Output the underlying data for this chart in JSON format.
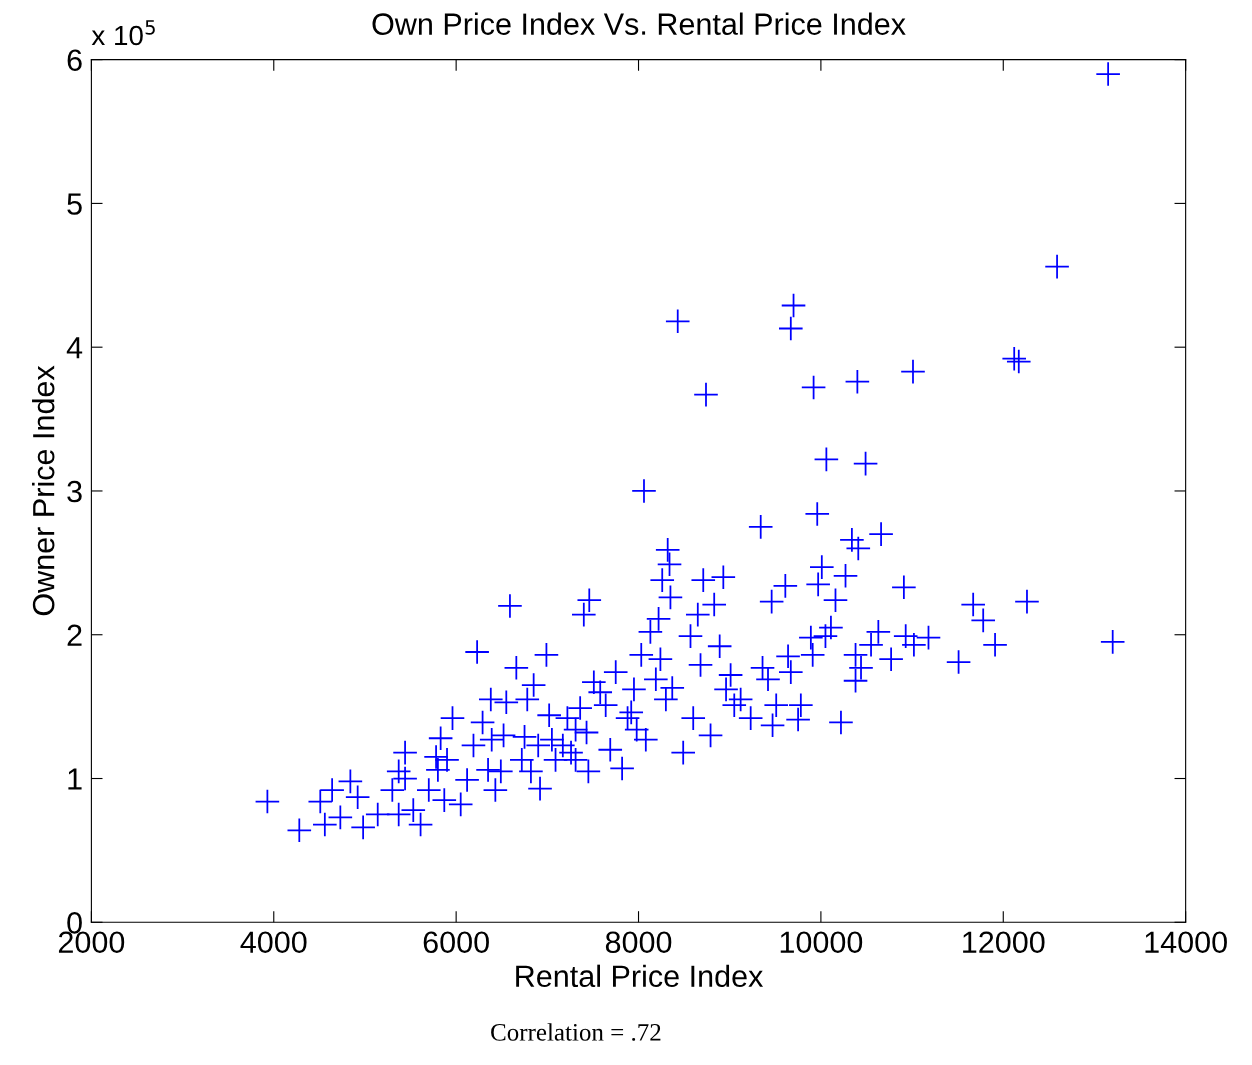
{
  "chart_data": {
    "type": "scatter",
    "title": "Own Price Index Vs. Rental Price Index",
    "xlabel": "Rental Price Index",
    "ylabel": "Owner Price Index",
    "annotations": [
      "x 10$^{5}$",
      "Correlation = .72"
    ],
    "xlim": [
      2000,
      14000
    ],
    "xticks": [
      2000,
      4000,
      6000,
      8000,
      10000,
      12000,
      14000
    ],
    "ylim": [
      0,
      6
    ],
    "yticks": [
      0,
      1,
      2,
      3,
      4,
      5,
      6
    ],
    "grid": false,
    "marker": "cross",
    "color": "#0000ff",
    "x": [
      3930,
      4280,
      4510,
      4640,
      4730,
      4560,
      4840,
      4920,
      4980,
      5140,
      5300,
      5370,
      5440,
      5440,
      5370,
      5530,
      5610,
      5700,
      5800,
      5780,
      5830,
      5870,
      5960,
      5900,
      6050,
      6120,
      6190,
      6230,
      6290,
      6380,
      6390,
      6350,
      6430,
      6490,
      6520,
      6550,
      6590,
      6660,
      6720,
      6750,
      6780,
      6820,
      6850,
      6900,
      6920,
      6990,
      7020,
      7050,
      7090,
      7170,
      7220,
      7260,
      7310,
      7310,
      7360,
      7400,
      7460,
      7430,
      7450,
      7510,
      7580,
      7640,
      7690,
      7750,
      7820,
      7880,
      7920,
      7950,
      7980,
      8030,
      8060,
      8080,
      8130,
      8190,
      8220,
      8240,
      8260,
      8300,
      8320,
      8340,
      8350,
      8370,
      8430,
      8490,
      8570,
      8600,
      8650,
      8680,
      8710,
      8740,
      8790,
      8830,
      8890,
      8930,
      8960,
      9010,
      9050,
      9120,
      9230,
      9340,
      9360,
      9420,
      9460,
      9470,
      9510,
      9610,
      9640,
      9670,
      9670,
      9700,
      9750,
      9780,
      9890,
      9910,
      9920,
      9960,
      9970,
      10010,
      10060,
      10050,
      10110,
      10160,
      10220,
      10270,
      10340,
      10380,
      10400,
      10380,
      10410,
      10440,
      10490,
      10550,
      10630,
      10660,
      10770,
      10910,
      10930,
      11010,
      11020,
      11180,
      11510,
      11670,
      11780,
      11910,
      12120,
      12170,
      12260,
      12590,
      13150,
      13200
    ],
    "values": [
      0.84,
      0.64,
      0.84,
      0.92,
      0.73,
      0.68,
      0.98,
      0.87,
      0.66,
      0.75,
      0.92,
      1.05,
      1.18,
      1.0,
      0.75,
      0.78,
      0.68,
      0.92,
      1.06,
      1.15,
      1.28,
      0.85,
      1.42,
      1.13,
      0.82,
      0.99,
      1.23,
      1.88,
      1.39,
      1.55,
      1.27,
      1.06,
      0.92,
      1.05,
      1.3,
      1.53,
      2.2,
      1.77,
      1.13,
      1.29,
      1.55,
      1.05,
      1.65,
      1.23,
      0.93,
      1.86,
      1.44,
      1.27,
      1.13,
      1.23,
      1.42,
      1.18,
      1.13,
      1.34,
      1.49,
      2.14,
      2.24,
      1.32,
      1.05,
      1.67,
      1.6,
      1.51,
      1.2,
      1.74,
      1.07,
      1.42,
      1.46,
      1.62,
      1.34,
      1.86,
      3.0,
      1.27,
      2.02,
      1.69,
      2.11,
      1.83,
      2.38,
      1.55,
      2.59,
      2.49,
      2.26,
      1.63,
      4.18,
      1.18,
      1.99,
      1.42,
      2.14,
      1.79,
      2.38,
      3.67,
      1.3,
      2.21,
      1.92,
      2.4,
      1.62,
      1.72,
      1.51,
      1.55,
      1.42,
      2.75,
      1.77,
      1.69,
      2.23,
      1.37,
      1.51,
      2.34,
      1.85,
      1.74,
      4.13,
      4.29,
      1.41,
      1.51,
      1.98,
      1.86,
      3.72,
      2.84,
      2.35,
      2.47,
      3.22,
      1.99,
      2.05,
      2.24,
      1.39,
      2.41,
      2.66,
      1.86,
      3.76,
      1.68,
      2.6,
      1.77,
      3.19,
      1.93,
      2.02,
      2.7,
      1.83,
      2.33,
      1.99,
      3.83,
      1.93,
      1.98,
      1.81,
      2.21,
      2.1,
      1.93,
      3.92,
      3.9,
      2.23,
      4.56,
      5.9,
      1.95
    ]
  }
}
